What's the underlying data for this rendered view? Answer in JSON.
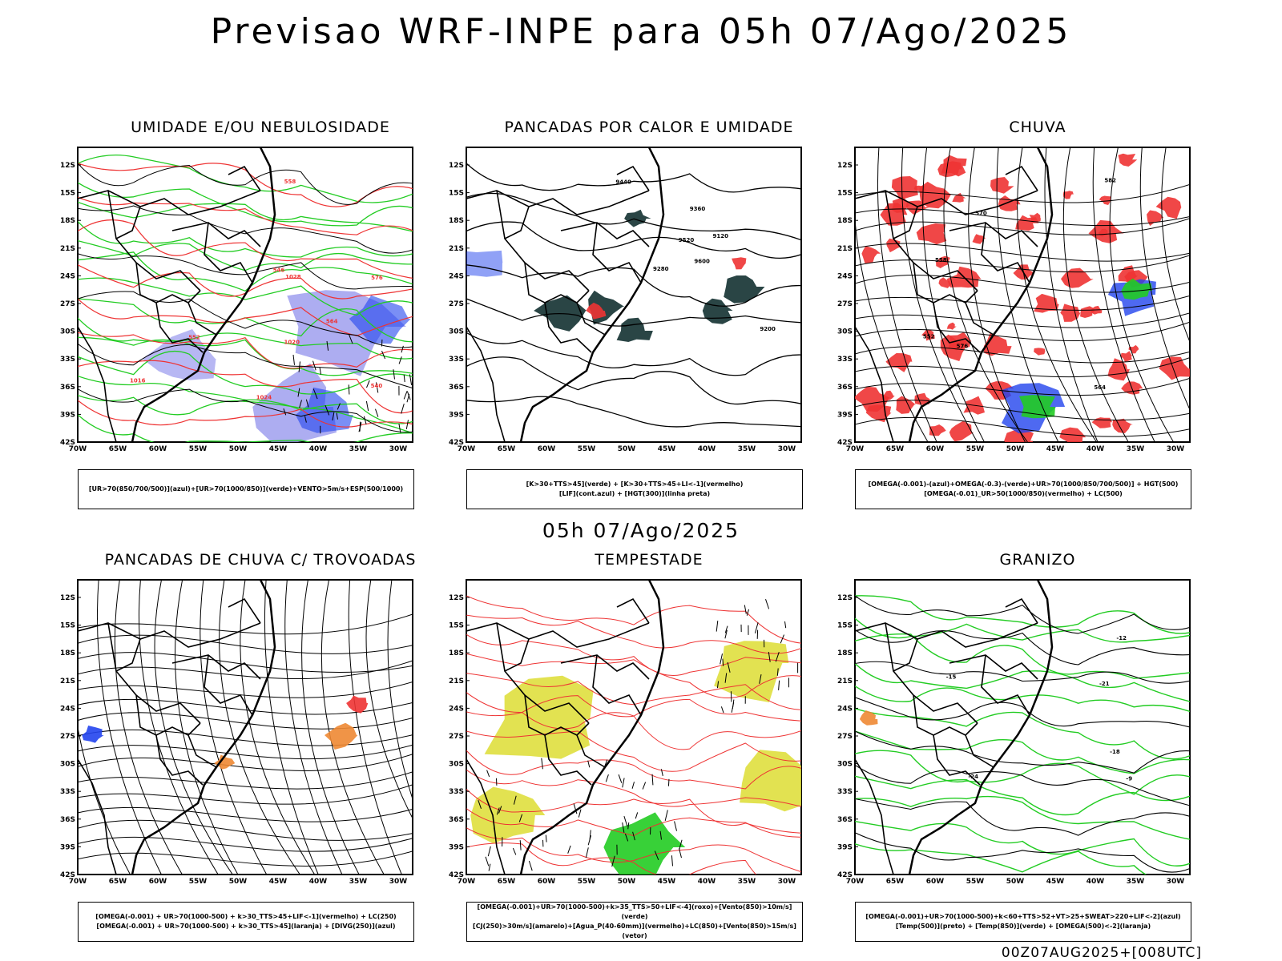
{
  "main_title": "Previsao WRF-INPE  para 05h 07/Ago/2025",
  "mid_title": "05h 07/Ago/2025",
  "footer": "00Z07AUG2025+[008UTC]",
  "axes": {
    "lat_labels": [
      "12S",
      "15S",
      "18S",
      "21S",
      "24S",
      "27S",
      "30S",
      "33S",
      "36S",
      "39S",
      "42S"
    ],
    "lon_labels": [
      "70W",
      "65W",
      "60W",
      "55W",
      "50W",
      "45W",
      "40W",
      "35W",
      "30W"
    ]
  },
  "colors": {
    "green": "#22cc22",
    "red": "#ee3333",
    "blue": "#2244ee",
    "lightblue": "#9999ee",
    "yellow": "#dddd33",
    "orange": "#ee8833",
    "dark": "#1f3b3b",
    "black": "#000000"
  },
  "panels": [
    {
      "title": "UMIDADE E/OU NEBULOSIDADE",
      "legend": [
        "[UR>70(850/700/500)](azul)+[UR>70(1000/850)](verde)+VENTO>5m/s+ESP(500/1000)"
      ],
      "labels": [
        "1020",
        "1016",
        "1024",
        "1028",
        "576",
        "564",
        "558",
        "552",
        "546",
        "540"
      ]
    },
    {
      "title": "PANCADAS POR CALOR E UMIDADE",
      "legend": [
        "[K>30+TTS>45](verde) + [K>30+TTS>45+LI<-1](vermelho)",
        "[LIF](cont.azul) + [HGT(300)](linha preta)"
      ],
      "labels": [
        "9600",
        "9520",
        "9440",
        "9360",
        "9280",
        "9200",
        "9120"
      ]
    },
    {
      "title": "CHUVA",
      "legend": [
        "[OMEGA(-0.001)-(azul)+OMEGA(-0.3)-(verde)+UR>70(1000/850/700/500)] + HGT(500)",
        "[OMEGA(-0.01)_UR>50(1000/850)(vermelho) + LC(500)"
      ],
      "labels": [
        "582",
        "576",
        "570",
        "564",
        "558",
        "552"
      ]
    },
    {
      "title": "PANCADAS DE CHUVA C/ TROVOADAS",
      "legend": [
        "[OMEGA(-0.001) + UR>70(1000-500) + k>30_TTS>45+LIF<-1](vermelho) + LC(250)",
        "[OMEGA(-0.001) + UR>70(1000-500) + k>30_TTS>45](laranja) + [DIVG(250)](azul)"
      ],
      "labels": []
    },
    {
      "title": "TEMPESTADE",
      "legend": [
        "[OMEGA(-0.001)+UR>70(1000-500)+k>35_TTS>50+LIF<-4](roxo)+[Vento(850)>10m/s](verde)",
        "[CJ(250)>30m/s](amarelo)+[Agua_P(40-60mm)](vermelho)+LC(850)+[Vento(850)>15m/s](vetor)"
      ],
      "labels": []
    },
    {
      "title": "GRANIZO",
      "legend": [
        "[OMEGA(-0.001)+UR>70(1000-500)+k<60+TTS>52+VT>25+SWEAT>220+LIF<-2](azul)",
        "[Temp(500)](preto) + [Temp(850)](verde) + [OMEGA(500)<-2](laranja)"
      ],
      "labels": [
        "-9",
        "-12",
        "-15",
        "-18",
        "-21",
        "-24"
      ]
    }
  ]
}
